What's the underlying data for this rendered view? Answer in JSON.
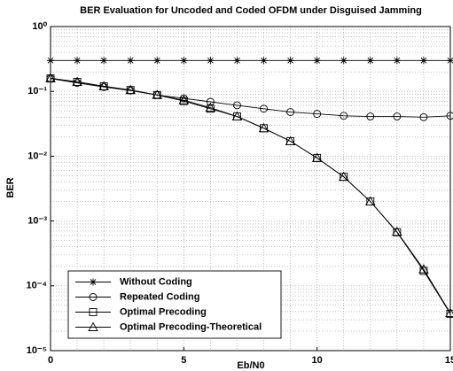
{
  "chart_data": {
    "type": "line",
    "title": "BER Evaluation for Uncoded and Coded OFDM under Disguised Jamming",
    "xlabel": "Eb/N0",
    "ylabel": "BER",
    "x": [
      0,
      1,
      2,
      3,
      4,
      5,
      6,
      7,
      8,
      9,
      10,
      11,
      12,
      13,
      14,
      15
    ],
    "series": [
      {
        "name": "Without Coding",
        "color": "#000000",
        "marker": "star",
        "values": [
          0.3,
          0.3,
          0.3,
          0.3,
          0.3,
          0.3,
          0.3,
          0.3,
          0.3,
          0.3,
          0.3,
          0.3,
          0.3,
          0.3,
          0.3,
          0.3
        ]
      },
      {
        "name": "Repeated Coding",
        "color": "#000000",
        "marker": "circle",
        "values": [
          0.158,
          0.135,
          0.117,
          0.103,
          0.088,
          0.078,
          0.069,
          0.061,
          0.054,
          0.048,
          0.045,
          0.042,
          0.041,
          0.041,
          0.04,
          0.042
        ]
      },
      {
        "name": "Optimal Precoding",
        "color": "#000000",
        "marker": "square",
        "values": [
          0.158,
          0.14,
          0.12,
          0.105,
          0.088,
          0.071,
          0.054,
          0.041,
          0.027,
          0.017,
          0.0094,
          0.0048,
          0.002,
          0.00067,
          0.00017,
          3.7e-05
        ]
      },
      {
        "name": "Optimal Precoding-Theoretical",
        "color": "#000000",
        "marker": "triangle",
        "values": [
          0.16,
          0.14,
          0.12,
          0.105,
          0.088,
          0.073,
          0.056,
          0.041,
          0.027,
          0.017,
          0.0094,
          0.0048,
          0.002,
          0.00068,
          0.00018,
          3.8e-05
        ]
      }
    ],
    "xlim": [
      0,
      15
    ],
    "xticks": [
      0,
      5,
      10,
      15
    ],
    "ylim": [
      1e-05,
      1
    ],
    "yticks": [
      {
        "value": 1,
        "label": "10⁰"
      },
      {
        "value": 0.1,
        "label": "10⁻¹"
      },
      {
        "value": 0.01,
        "label": "10⁻²"
      },
      {
        "value": 0.001,
        "label": "10⁻³"
      },
      {
        "value": 0.0001,
        "label": "10⁻⁴"
      },
      {
        "value": 1e-05,
        "label": "10⁻⁵"
      }
    ],
    "log_y": true,
    "grid": true,
    "legend": "lower left"
  }
}
